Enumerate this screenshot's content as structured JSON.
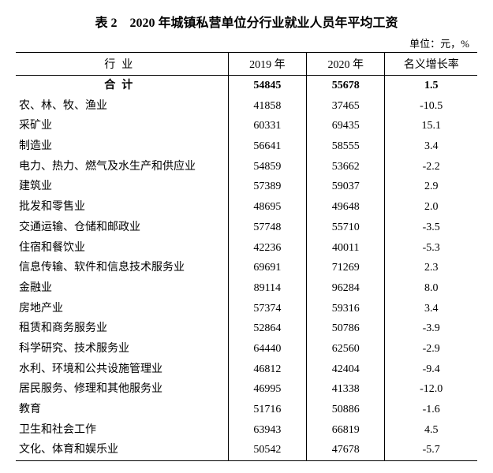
{
  "title": "表 2　2020 年城镇私营单位分行业就业人员年平均工资",
  "unit": "单位：元，%",
  "columns": [
    "行业",
    "2019 年",
    "2020 年",
    "名义增长率"
  ],
  "total": {
    "label": "合计",
    "y2019": "54845",
    "y2020": "55678",
    "growth": "1.5"
  },
  "rows": [
    {
      "industry": "农、林、牧、渔业",
      "y2019": "41858",
      "y2020": "37465",
      "growth": "-10.5"
    },
    {
      "industry": "采矿业",
      "y2019": "60331",
      "y2020": "69435",
      "growth": "15.1"
    },
    {
      "industry": "制造业",
      "y2019": "56641",
      "y2020": "58555",
      "growth": "3.4"
    },
    {
      "industry": "电力、热力、燃气及水生产和供应业",
      "y2019": "54859",
      "y2020": "53662",
      "growth": "-2.2"
    },
    {
      "industry": "建筑业",
      "y2019": "57389",
      "y2020": "59037",
      "growth": "2.9"
    },
    {
      "industry": "批发和零售业",
      "y2019": "48695",
      "y2020": "49648",
      "growth": "2.0"
    },
    {
      "industry": "交通运输、仓储和邮政业",
      "y2019": "57748",
      "y2020": "55710",
      "growth": "-3.5"
    },
    {
      "industry": "住宿和餐饮业",
      "y2019": "42236",
      "y2020": "40011",
      "growth": "-5.3"
    },
    {
      "industry": "信息传输、软件和信息技术服务业",
      "y2019": "69691",
      "y2020": "71269",
      "growth": "2.3"
    },
    {
      "industry": "金融业",
      "y2019": "89114",
      "y2020": "96284",
      "growth": "8.0"
    },
    {
      "industry": "房地产业",
      "y2019": "57374",
      "y2020": "59316",
      "growth": "3.4"
    },
    {
      "industry": "租赁和商务服务业",
      "y2019": "52864",
      "y2020": "50786",
      "growth": "-3.9"
    },
    {
      "industry": "科学研究、技术服务业",
      "y2019": "64440",
      "y2020": "62560",
      "growth": "-2.9"
    },
    {
      "industry": "水利、环境和公共设施管理业",
      "y2019": "46812",
      "y2020": "42404",
      "growth": "-9.4"
    },
    {
      "industry": "居民服务、修理和其他服务业",
      "y2019": "46995",
      "y2020": "41338",
      "growth": "-12.0"
    },
    {
      "industry": "教育",
      "y2019": "51716",
      "y2020": "50886",
      "growth": "-1.6"
    },
    {
      "industry": "卫生和社会工作",
      "y2019": "63943",
      "y2020": "66819",
      "growth": "4.5"
    },
    {
      "industry": "文化、体育和娱乐业",
      "y2019": "50542",
      "y2020": "47678",
      "growth": "-5.7"
    }
  ]
}
